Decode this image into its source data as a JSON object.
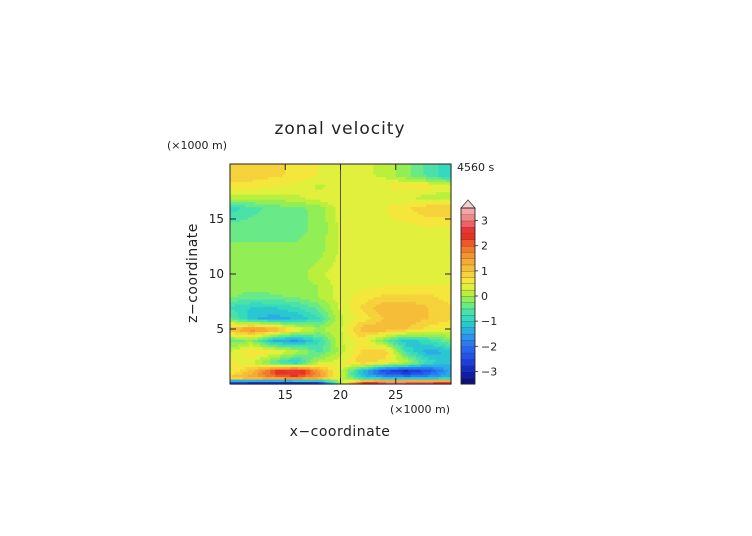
{
  "chart_data": {
    "type": "heatmap",
    "title": "zonal velocity",
    "xlabel": "x−coordinate",
    "ylabel": "z−coordinate",
    "x_unit": "(×1000 m)",
    "y_unit": "(×1000 m)",
    "time_label": "4560 s",
    "xlim": [
      10,
      30
    ],
    "ylim": [
      0,
      20
    ],
    "x_ticks": [
      15,
      20,
      25
    ],
    "x_tick_labels": [
      "15",
      "20",
      "25"
    ],
    "y_ticks": [
      5,
      10,
      15
    ],
    "y_tick_labels": [
      "5",
      "10",
      "15"
    ],
    "colorbar": {
      "levels": [
        -3.5,
        -3.25,
        -3.0,
        -2.75,
        -2.5,
        -2.25,
        -2.0,
        -1.75,
        -1.5,
        -1.25,
        -1.0,
        -0.75,
        -0.5,
        -0.25,
        0.0,
        0.25,
        0.5,
        0.75,
        1.0,
        1.25,
        1.5,
        1.75,
        2.0,
        2.25,
        2.5,
        2.75,
        3.0,
        3.25,
        3.5
      ],
      "tick_values": [
        -3,
        -2,
        -1,
        0,
        1,
        2,
        3
      ],
      "tick_labels": [
        "−3",
        "−2",
        "−1",
        "0",
        "1",
        "2",
        "3"
      ],
      "extend": "max"
    },
    "x_samples_km": [
      10,
      12,
      14,
      16,
      18,
      20,
      22,
      24,
      26,
      28,
      30
    ],
    "z_samples_km": [
      0.2,
      0.6,
      1.2,
      2.0,
      3.0,
      4.0,
      5.0,
      6.0,
      7.0,
      8.0,
      9.0,
      10.0,
      12.0,
      14.0,
      16.0,
      17.0,
      18.0,
      19.0
    ],
    "u_values": [
      [
        -2.6,
        -2.8,
        -3.0,
        -3.0,
        -2.8,
        0.0,
        2.2,
        3.0,
        3.0,
        2.8,
        2.6
      ],
      [
        1.2,
        1.4,
        1.8,
        2.0,
        1.6,
        0.3,
        -1.0,
        -1.4,
        -1.6,
        -1.4,
        -1.2
      ],
      [
        0.4,
        1.2,
        2.4,
        3.0,
        1.6,
        0.3,
        -1.4,
        -2.6,
        -3.0,
        -2.4,
        -1.4
      ],
      [
        0.6,
        0.3,
        -0.6,
        -1.2,
        0.2,
        0.4,
        1.0,
        0.6,
        0.2,
        -0.8,
        -1.2
      ],
      [
        0.2,
        0.8,
        0.6,
        0.2,
        -0.6,
        0.1,
        0.8,
        1.0,
        -0.8,
        -1.4,
        -1.2
      ],
      [
        -0.4,
        -0.2,
        -1.4,
        -1.6,
        -0.8,
        0.2,
        0.6,
        -0.4,
        -1.2,
        -0.8,
        -0.2
      ],
      [
        1.2,
        1.8,
        1.4,
        0.6,
        0.0,
        0.2,
        1.2,
        1.2,
        1.0,
        0.6,
        0.4
      ],
      [
        -0.4,
        -1.2,
        -1.4,
        -1.2,
        -0.8,
        0.2,
        0.6,
        1.0,
        1.2,
        1.0,
        0.8
      ],
      [
        -0.8,
        -1.0,
        -1.0,
        -0.8,
        -0.4,
        0.3,
        0.8,
        1.2,
        1.2,
        1.0,
        0.8
      ],
      [
        -0.2,
        -0.4,
        -0.3,
        -0.2,
        0.0,
        0.4,
        0.6,
        0.8,
        0.8,
        0.8,
        0.6
      ],
      [
        -0.1,
        -0.1,
        -0.1,
        -0.1,
        0.0,
        0.4,
        0.4,
        0.5,
        0.5,
        0.5,
        0.5
      ],
      [
        -0.2,
        -0.2,
        -0.2,
        -0.2,
        0.2,
        0.4,
        0.4,
        0.4,
        0.4,
        0.4,
        0.4
      ],
      [
        -0.2,
        -0.2,
        -0.2,
        -0.2,
        -0.1,
        0.3,
        0.4,
        0.4,
        0.4,
        0.4,
        0.4
      ],
      [
        -0.3,
        -0.3,
        -0.3,
        -0.3,
        -0.2,
        0.3,
        0.4,
        0.4,
        0.4,
        0.4,
        0.4
      ],
      [
        -0.9,
        -0.6,
        -0.4,
        -0.3,
        -0.2,
        0.4,
        0.5,
        0.5,
        0.7,
        1.0,
        1.0
      ],
      [
        0.1,
        0.1,
        0.1,
        0.2,
        0.4,
        0.5,
        0.5,
        0.4,
        0.3,
        0.1,
        0.0
      ],
      [
        0.6,
        0.6,
        0.5,
        0.4,
        0.2,
        0.3,
        0.4,
        0.5,
        0.6,
        0.6,
        0.4
      ],
      [
        1.0,
        0.9,
        0.8,
        0.7,
        0.5,
        0.4,
        0.3,
        0.2,
        -0.2,
        -0.6,
        -1.0
      ]
    ]
  }
}
